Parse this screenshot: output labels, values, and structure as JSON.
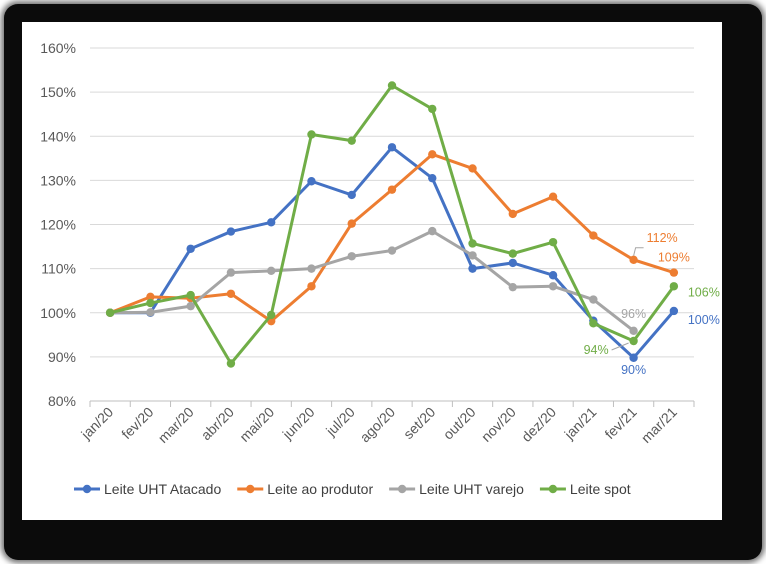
{
  "chart_data": {
    "type": "line",
    "title": "",
    "xlabel": "",
    "ylabel": "",
    "ylim": [
      80,
      160
    ],
    "y_ticks": [
      80,
      90,
      100,
      110,
      120,
      130,
      140,
      150,
      160
    ],
    "y_tick_labels": [
      "80%",
      "90%",
      "100%",
      "110%",
      "120%",
      "130%",
      "140%",
      "150%",
      "160%"
    ],
    "grid": true,
    "legend": "bottom",
    "categories": [
      "jan/20",
      "fev/20",
      "mar/20",
      "abr/20",
      "mai/20",
      "jun/20",
      "jul/20",
      "ago/20",
      "set/20",
      "out/20",
      "nov/20",
      "dez/20",
      "jan/21",
      "fev/21",
      "mar/21"
    ],
    "series": [
      {
        "name": "Leite UHT Atacado",
        "color": "#4472C4",
        "values": [
          100,
          100,
          114.5,
          118.4,
          120.5,
          129.8,
          126.7,
          137.5,
          130.5,
          110.0,
          111.3,
          108.5,
          98.2,
          89.8,
          100.4
        ]
      },
      {
        "name": "Leite ao produtor",
        "color": "#ED7D31",
        "values": [
          100,
          103.6,
          103.3,
          104.3,
          98.1,
          106.0,
          120.2,
          127.9,
          135.9,
          132.7,
          122.4,
          126.3,
          117.5,
          112.0,
          109.1
        ]
      },
      {
        "name": "Leite UHT varejo",
        "color": "#A5A5A5",
        "values": [
          100,
          100.1,
          101.5,
          109.1,
          109.5,
          110.0,
          112.8,
          114.1,
          118.5,
          113.0,
          105.8,
          106.0,
          103.0,
          95.9,
          null
        ]
      },
      {
        "name": "Leite spot",
        "color": "#70AD47",
        "values": [
          100,
          102.2,
          104.0,
          88.5,
          99.5,
          140.4,
          139.0,
          151.5,
          146.2,
          115.7,
          113.4,
          116.0,
          97.6,
          93.6,
          106.0
        ]
      }
    ],
    "annotations": [
      {
        "text": "112%",
        "series": "Leite ao produtor",
        "index": 13
      },
      {
        "text": "109%",
        "series": "Leite ao produtor",
        "index": 14
      },
      {
        "text": "96%",
        "series": "Leite UHT varejo",
        "index": 13
      },
      {
        "text": "106%",
        "series": "Leite spot",
        "index": 14
      },
      {
        "text": "100%",
        "series": "Leite UHT Atacado",
        "index": 14
      },
      {
        "text": "94%",
        "series": "Leite spot",
        "index": 13
      },
      {
        "text": "90%",
        "series": "Leite UHT Atacado",
        "index": 13
      }
    ]
  }
}
